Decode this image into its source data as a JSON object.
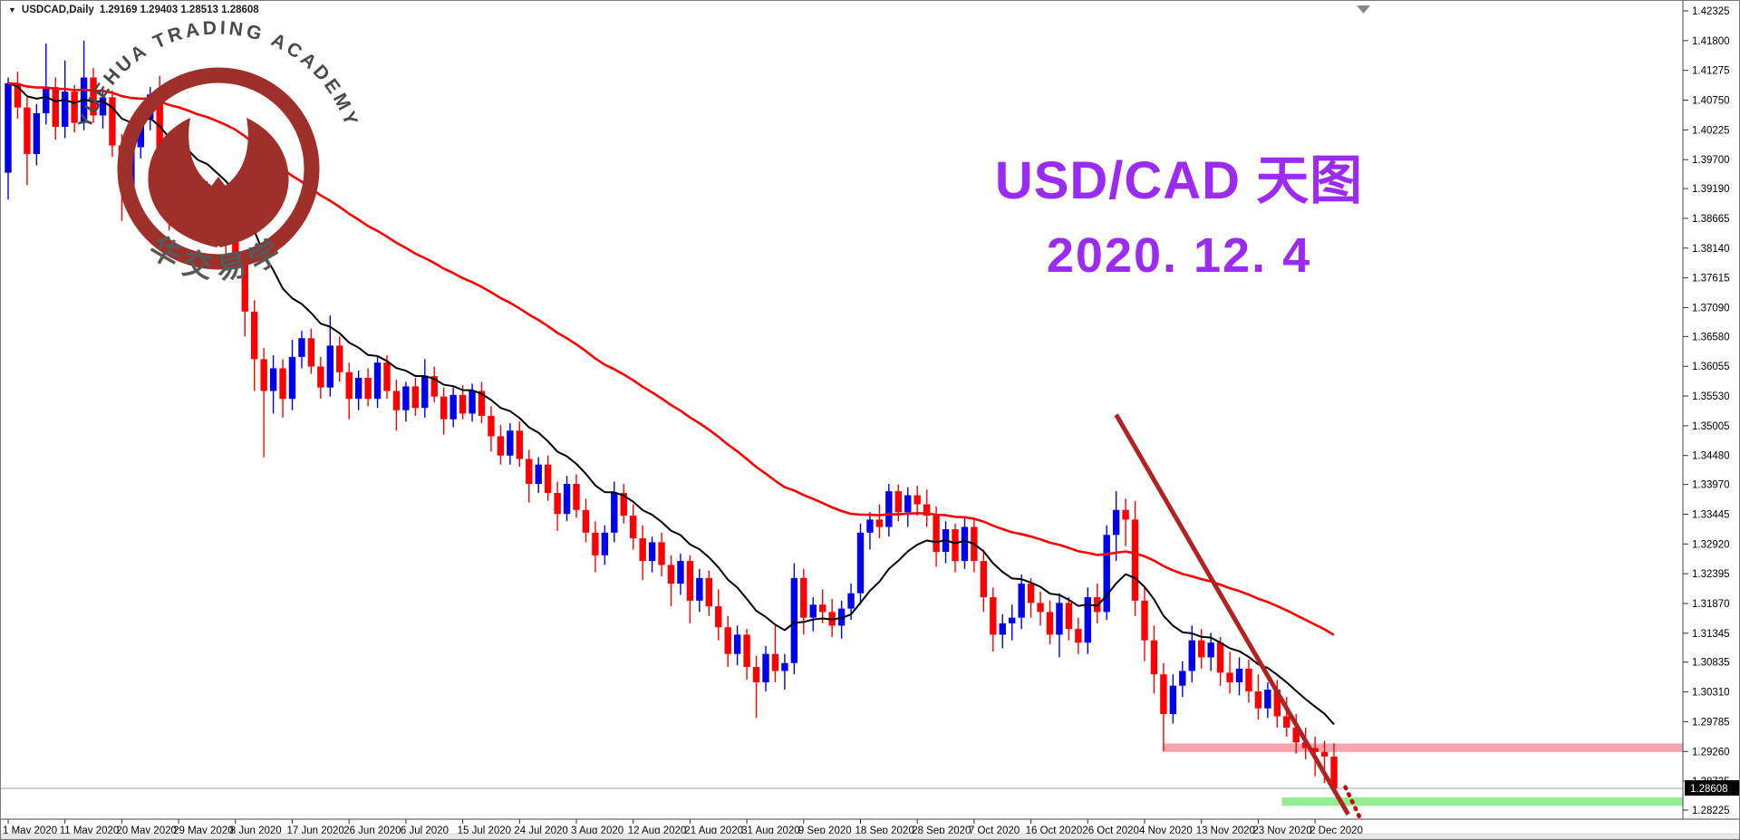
{
  "window": {
    "symbol_period": "USDCAD,Daily",
    "ohlc_values": "1.29169 1.29403 1.28513 1.28608"
  },
  "annotation_title": {
    "line1": "USD/CAD 天图",
    "line2": "2020. 12. 4",
    "color": "#9b2bf2"
  },
  "watermark": {
    "arc_text": "YUEHUA TRADING ACADEMY",
    "chinese_text": "悦华交易学院",
    "emblem_color": "#9e2f2b",
    "arc_text_color": "#4a4a4a",
    "chinese_text_color": "#585858"
  },
  "chart_data": {
    "type": "candlestick",
    "symbol": "USDCAD",
    "timeframe": "Daily",
    "title": "USD/CAD 天图 2020.12.4",
    "last_bar": {
      "open": 1.29169,
      "high": 1.29403,
      "low": 1.28513,
      "close": 1.28608
    },
    "bull_color": "#0000f0",
    "bear_color": "#ff0000",
    "background": "#ffffff",
    "grid": false,
    "y_axis": {
      "side": "right",
      "top_value": 1.42325,
      "bottom_value": 1.28225,
      "current_price_badge": "1.28608",
      "labels": [
        "1.42325",
        "1.41800",
        "1.41275",
        "1.40750",
        "1.40225",
        "1.39700",
        "1.39190",
        "1.38665",
        "1.38140",
        "1.37615",
        "1.37090",
        "1.36580",
        "1.36055",
        "1.35530",
        "1.35005",
        "1.34480",
        "1.33970",
        "1.33445",
        "1.32920",
        "1.32395",
        "1.31870",
        "1.31345",
        "1.30835",
        "1.30310",
        "1.29785",
        "1.29260",
        "1.28735",
        "1.28225"
      ]
    },
    "x_axis": {
      "bars_per_tick": 6,
      "tick_labels": [
        "1 May 2020",
        "11 May 2020",
        "20 May 2020",
        "29 May 2020",
        "8 Jun 2020",
        "17 Jun 2020",
        "26 Jun 2020",
        "6 Jul 2020",
        "15 Jul 2020",
        "24 Jul 2020",
        "3 Aug 2020",
        "12 Aug 2020",
        "21 Aug 2020",
        "31 Aug 2020",
        "9 Sep 2020",
        "18 Sep 2020",
        "28 Sep 2020",
        "7 Oct 2020",
        "16 Oct 2020",
        "26 Oct 2020",
        "4 Nov 2020",
        "13 Nov 2020",
        "23 Nov 2020",
        "2 Dec 2020"
      ]
    },
    "indicators": [
      {
        "name": "fast-ma",
        "type": "ema",
        "period": 13,
        "color": "#000000",
        "width": 2
      },
      {
        "name": "slow-ma",
        "type": "ema",
        "period": 55,
        "color": "#ff0000",
        "width": 2.6
      }
    ],
    "annotations": {
      "trendline": {
        "from_bar": 117.0,
        "from_price": 1.352,
        "to_bar": 141.5,
        "to_price": 1.2815,
        "color": "#b22222",
        "width": 5
      },
      "arrow": {
        "from_bar": 141.2,
        "from_price": 1.2863,
        "to_bar": 143.9,
        "to_price": 1.2768,
        "color": "#cc0000",
        "style": "dotted"
      },
      "resistance_zone": {
        "from_bar": 122,
        "price_low": 1.2925,
        "price_high": 1.294,
        "color": "#f5a5ab"
      },
      "support_zone": {
        "from_bar": 134.5,
        "price_low": 1.283,
        "price_high": 1.2845,
        "color": "#90ee90"
      },
      "price_line": {
        "price": 1.28608,
        "color": "#8ca3b0"
      }
    },
    "candles": [
      [
        1.3947,
        1.4115,
        1.39,
        1.4105
      ],
      [
        1.4105,
        1.4125,
        1.4042,
        1.4062
      ],
      [
        1.4062,
        1.408,
        1.3925,
        1.398
      ],
      [
        1.398,
        1.4068,
        1.396,
        1.4052
      ],
      [
        1.4052,
        1.4175,
        1.4032,
        1.4098
      ],
      [
        1.4098,
        1.4115,
        1.4005,
        1.4028
      ],
      [
        1.4028,
        1.4145,
        1.4008,
        1.409
      ],
      [
        1.409,
        1.4102,
        1.4018,
        1.4035
      ],
      [
        1.4035,
        1.418,
        1.4022,
        1.4115
      ],
      [
        1.4115,
        1.4132,
        1.4035,
        1.4048
      ],
      [
        1.4048,
        1.4095,
        1.4025,
        1.408
      ],
      [
        1.408,
        1.4092,
        1.3975,
        1.3995
      ],
      [
        1.3995,
        1.4015,
        1.3862,
        1.3925
      ],
      [
        1.3925,
        1.4,
        1.3905,
        1.3992
      ],
      [
        1.3992,
        1.4052,
        1.3972,
        1.4042
      ],
      [
        1.4042,
        1.4098,
        1.4022,
        1.4085
      ],
      [
        1.4085,
        1.4118,
        1.3928,
        1.3942
      ],
      [
        1.3942,
        1.3968,
        1.3845,
        1.3892
      ],
      [
        1.3892,
        1.3962,
        1.3872,
        1.3952
      ],
      [
        1.3952,
        1.3972,
        1.3888,
        1.3902
      ],
      [
        1.3902,
        1.3928,
        1.3852,
        1.3868
      ],
      [
        1.3868,
        1.3932,
        1.3848,
        1.3918
      ],
      [
        1.3918,
        1.3935,
        1.3848,
        1.3858
      ],
      [
        1.3858,
        1.3882,
        1.3802,
        1.3838
      ],
      [
        1.3838,
        1.3858,
        1.3775,
        1.3792
      ],
      [
        1.3792,
        1.3805,
        1.3658,
        1.3702
      ],
      [
        1.3702,
        1.3722,
        1.3562,
        1.3618
      ],
      [
        1.3618,
        1.3638,
        1.3445,
        1.3562
      ],
      [
        1.3562,
        1.3625,
        1.3522,
        1.3602
      ],
      [
        1.3602,
        1.3618,
        1.3515,
        1.3548
      ],
      [
        1.3548,
        1.3652,
        1.3528,
        1.3622
      ],
      [
        1.3622,
        1.3668,
        1.3602,
        1.3655
      ],
      [
        1.3655,
        1.3672,
        1.3592,
        1.3605
      ],
      [
        1.3605,
        1.3622,
        1.3548,
        1.3568
      ],
      [
        1.3568,
        1.3695,
        1.3552,
        1.3642
      ],
      [
        1.3642,
        1.3658,
        1.3578,
        1.3595
      ],
      [
        1.3595,
        1.3612,
        1.3512,
        1.3548
      ],
      [
        1.3548,
        1.3598,
        1.3528,
        1.3585
      ],
      [
        1.3585,
        1.3602,
        1.3535,
        1.3548
      ],
      [
        1.3548,
        1.3625,
        1.3532,
        1.3612
      ],
      [
        1.3612,
        1.3625,
        1.3548,
        1.3562
      ],
      [
        1.3562,
        1.3582,
        1.3492,
        1.3528
      ],
      [
        1.3528,
        1.3578,
        1.3508,
        1.357
      ],
      [
        1.357,
        1.3585,
        1.3518,
        1.3532
      ],
      [
        1.3532,
        1.3618,
        1.3515,
        1.3588
      ],
      [
        1.3588,
        1.3605,
        1.3542,
        1.3552
      ],
      [
        1.3552,
        1.3568,
        1.3485,
        1.3512
      ],
      [
        1.3512,
        1.3568,
        1.3498,
        1.3555
      ],
      [
        1.3555,
        1.3572,
        1.3512,
        1.3522
      ],
      [
        1.3522,
        1.3575,
        1.3508,
        1.3562
      ],
      [
        1.3562,
        1.3578,
        1.3505,
        1.3518
      ],
      [
        1.3518,
        1.3535,
        1.3455,
        1.3482
      ],
      [
        1.3482,
        1.3502,
        1.3432,
        1.3448
      ],
      [
        1.3448,
        1.3505,
        1.3432,
        1.3492
      ],
      [
        1.3492,
        1.3508,
        1.3428,
        1.3442
      ],
      [
        1.3442,
        1.3458,
        1.3365,
        1.3398
      ],
      [
        1.3398,
        1.3445,
        1.3382,
        1.3432
      ],
      [
        1.3432,
        1.3448,
        1.3368,
        1.3382
      ],
      [
        1.3382,
        1.3402,
        1.3315,
        1.3345
      ],
      [
        1.3345,
        1.3412,
        1.3332,
        1.3398
      ],
      [
        1.3398,
        1.3415,
        1.3338,
        1.3352
      ],
      [
        1.3352,
        1.3372,
        1.3295,
        1.3312
      ],
      [
        1.3312,
        1.3332,
        1.3242,
        1.3272
      ],
      [
        1.3272,
        1.3325,
        1.3255,
        1.3312
      ],
      [
        1.3312,
        1.3402,
        1.3295,
        1.3382
      ],
      [
        1.3382,
        1.3398,
        1.3328,
        1.3342
      ],
      [
        1.3342,
        1.3362,
        1.3282,
        1.3302
      ],
      [
        1.3302,
        1.3325,
        1.3228,
        1.3262
      ],
      [
        1.3262,
        1.3305,
        1.3242,
        1.3295
      ],
      [
        1.3295,
        1.3312,
        1.3235,
        1.3255
      ],
      [
        1.3255,
        1.3272,
        1.3182,
        1.3222
      ],
      [
        1.3222,
        1.3275,
        1.3202,
        1.3262
      ],
      [
        1.3262,
        1.3272,
        1.3152,
        1.3192
      ],
      [
        1.3192,
        1.3248,
        1.3172,
        1.3232
      ],
      [
        1.3232,
        1.3245,
        1.3165,
        1.3182
      ],
      [
        1.3182,
        1.3212,
        1.3122,
        1.3145
      ],
      [
        1.3145,
        1.3165,
        1.3075,
        1.3098
      ],
      [
        1.3098,
        1.3148,
        1.3078,
        1.3132
      ],
      [
        1.3132,
        1.3142,
        1.3052,
        1.3075
      ],
      [
        1.3075,
        1.3095,
        1.2985,
        1.3048
      ],
      [
        1.3048,
        1.3112,
        1.3032,
        1.3098
      ],
      [
        1.3098,
        1.3152,
        1.3048,
        1.3068
      ],
      [
        1.3068,
        1.3098,
        1.3035,
        1.3082
      ],
      [
        1.3082,
        1.3258,
        1.3062,
        1.3232
      ],
      [
        1.3232,
        1.3248,
        1.3132,
        1.3162
      ],
      [
        1.3162,
        1.3198,
        1.3138,
        1.3185
      ],
      [
        1.3185,
        1.3212,
        1.3152,
        1.3172
      ],
      [
        1.3172,
        1.3195,
        1.3128,
        1.3148
      ],
      [
        1.3148,
        1.3192,
        1.3125,
        1.3178
      ],
      [
        1.3178,
        1.3222,
        1.3158,
        1.3205
      ],
      [
        1.3205,
        1.3328,
        1.3185,
        1.3312
      ],
      [
        1.3312,
        1.3348,
        1.3282,
        1.3335
      ],
      [
        1.3335,
        1.3362,
        1.3302,
        1.3322
      ],
      [
        1.3322,
        1.3398,
        1.3305,
        1.3385
      ],
      [
        1.3385,
        1.3397,
        1.3332,
        1.3348
      ],
      [
        1.3348,
        1.3392,
        1.3322,
        1.3378
      ],
      [
        1.3378,
        1.3395,
        1.3342,
        1.3362
      ],
      [
        1.3362,
        1.3388,
        1.3322,
        1.3342
      ],
      [
        1.3342,
        1.3358,
        1.3252,
        1.3278
      ],
      [
        1.3278,
        1.3332,
        1.3258,
        1.3318
      ],
      [
        1.3318,
        1.3328,
        1.3242,
        1.3262
      ],
      [
        1.3262,
        1.3338,
        1.3248,
        1.3322
      ],
      [
        1.3322,
        1.3335,
        1.3242,
        1.3262
      ],
      [
        1.3262,
        1.3282,
        1.3172,
        1.3198
      ],
      [
        1.3198,
        1.3215,
        1.3102,
        1.3132
      ],
      [
        1.3132,
        1.3168,
        1.3108,
        1.3152
      ],
      [
        1.3152,
        1.3185,
        1.3122,
        1.3162
      ],
      [
        1.3162,
        1.3238,
        1.3142,
        1.3222
      ],
      [
        1.3222,
        1.3232,
        1.3162,
        1.3188
      ],
      [
        1.3188,
        1.3208,
        1.3148,
        1.3172
      ],
      [
        1.3172,
        1.3192,
        1.3115,
        1.3132
      ],
      [
        1.3132,
        1.3205,
        1.3092,
        1.3188
      ],
      [
        1.3188,
        1.3198,
        1.3122,
        1.3142
      ],
      [
        1.3142,
        1.3162,
        1.3098,
        1.3118
      ],
      [
        1.3118,
        1.3215,
        1.3098,
        1.3198
      ],
      [
        1.3198,
        1.3222,
        1.3152,
        1.3172
      ],
      [
        1.3172,
        1.3325,
        1.3158,
        1.3308
      ],
      [
        1.3308,
        1.3385,
        1.3262,
        1.3352
      ],
      [
        1.3352,
        1.3372,
        1.3288,
        1.3335
      ],
      [
        1.3335,
        1.3368,
        1.3165,
        1.3192
      ],
      [
        1.3192,
        1.3215,
        1.3085,
        1.3122
      ],
      [
        1.3122,
        1.3148,
        1.3028,
        1.3062
      ],
      [
        1.3062,
        1.3082,
        1.2926,
        1.2992
      ],
      [
        1.2992,
        1.3062,
        1.2975,
        1.3042
      ],
      [
        1.3042,
        1.3085,
        1.3022,
        1.3068
      ],
      [
        1.3068,
        1.3148,
        1.3048,
        1.3122
      ],
      [
        1.3122,
        1.3142,
        1.3072,
        1.3092
      ],
      [
        1.3092,
        1.3135,
        1.3068,
        1.3118
      ],
      [
        1.3118,
        1.3128,
        1.3042,
        1.3065
      ],
      [
        1.3065,
        1.3102,
        1.3028,
        1.3048
      ],
      [
        1.3048,
        1.3092,
        1.3025,
        1.3072
      ],
      [
        1.3072,
        1.3088,
        1.3012,
        1.3032
      ],
      [
        1.3032,
        1.3062,
        1.2982,
        1.3002
      ],
      [
        1.3002,
        1.3048,
        1.2985,
        1.3035
      ],
      [
        1.3035,
        1.3052,
        1.2968,
        1.2988
      ],
      [
        1.2988,
        1.3022,
        1.2952,
        1.2968
      ],
      [
        1.2968,
        1.2992,
        1.2922,
        1.2942
      ],
      [
        1.2942,
        1.2968,
        1.2912,
        1.2932
      ],
      [
        1.2932,
        1.2952,
        1.2882,
        1.2925
      ],
      [
        1.2925,
        1.2945,
        1.287,
        1.2917
      ],
      [
        1.29169,
        1.29403,
        1.28513,
        1.28608
      ]
    ]
  }
}
